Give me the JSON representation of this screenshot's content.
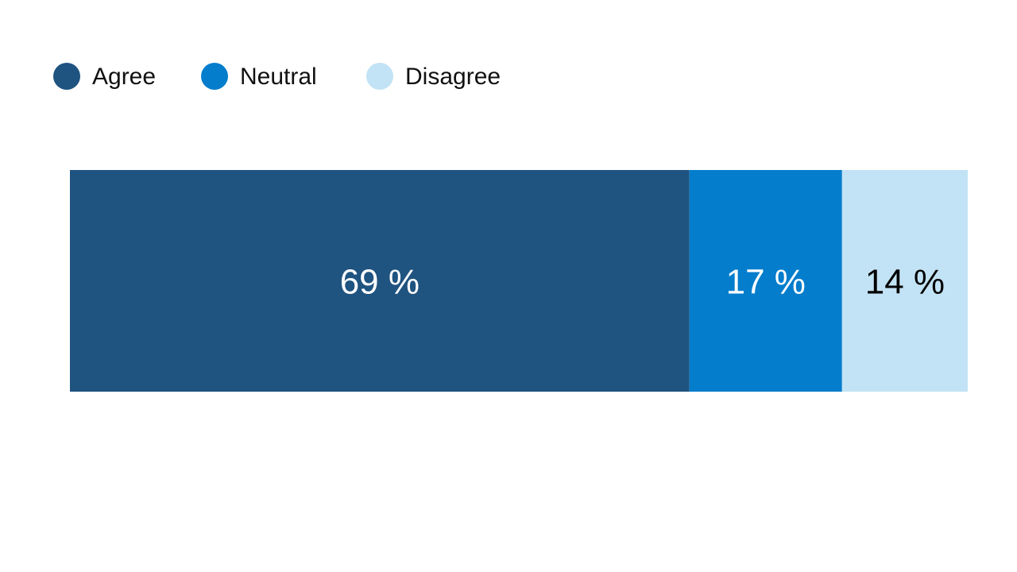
{
  "colors": {
    "agree": "#1f5380",
    "neutral": "#047dcc",
    "disagree": "#c2e3f5",
    "label_light": "#ffffff",
    "label_dark": "#000000"
  },
  "chart_data": {
    "type": "bar",
    "orientation": "horizontal-stacked-100",
    "title": "",
    "legend_placement": "top-left",
    "grid": false,
    "xlim": [
      0,
      100
    ],
    "series": [
      {
        "name": "Agree",
        "value": 69,
        "label": "69 %",
        "color": "#1f5380",
        "label_color": "#ffffff"
      },
      {
        "name": "Neutral",
        "value": 17,
        "label": "17 %",
        "color": "#047dcc",
        "label_color": "#ffffff"
      },
      {
        "name": "Disagree",
        "value": 14,
        "label": "14 %",
        "color": "#c2e3f5",
        "label_color": "#000000"
      }
    ]
  }
}
